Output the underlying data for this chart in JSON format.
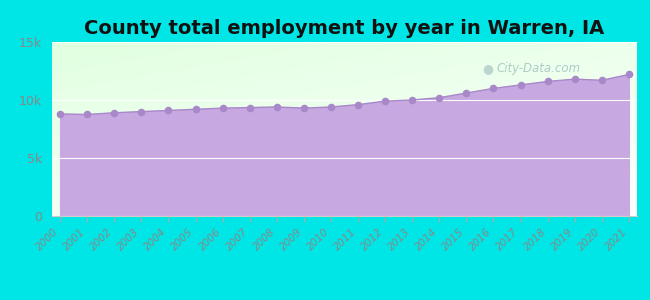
{
  "title": "County total employment by year in Warren, IA",
  "years": [
    2000,
    2001,
    2002,
    2003,
    2004,
    2005,
    2006,
    2007,
    2008,
    2009,
    2010,
    2011,
    2012,
    2013,
    2014,
    2015,
    2016,
    2017,
    2018,
    2019,
    2020,
    2021
  ],
  "values": [
    8800,
    8750,
    8900,
    9000,
    9100,
    9200,
    9300,
    9350,
    9400,
    9300,
    9400,
    9600,
    9900,
    10000,
    10200,
    10600,
    11000,
    11300,
    11600,
    11800,
    11700,
    12200
  ],
  "ylim": [
    0,
    15000
  ],
  "yticks": [
    0,
    5000,
    10000,
    15000
  ],
  "ytick_labels": [
    "0",
    "5k",
    "10k",
    "15k"
  ],
  "background_color": "#00e5e5",
  "fill_color": "#c8a8e0",
  "line_color": "#a888c8",
  "dot_color": "#a888c8",
  "title_fontsize": 14,
  "title_color": "#111111",
  "tick_color": "#888888",
  "watermark": "City-Data.com"
}
